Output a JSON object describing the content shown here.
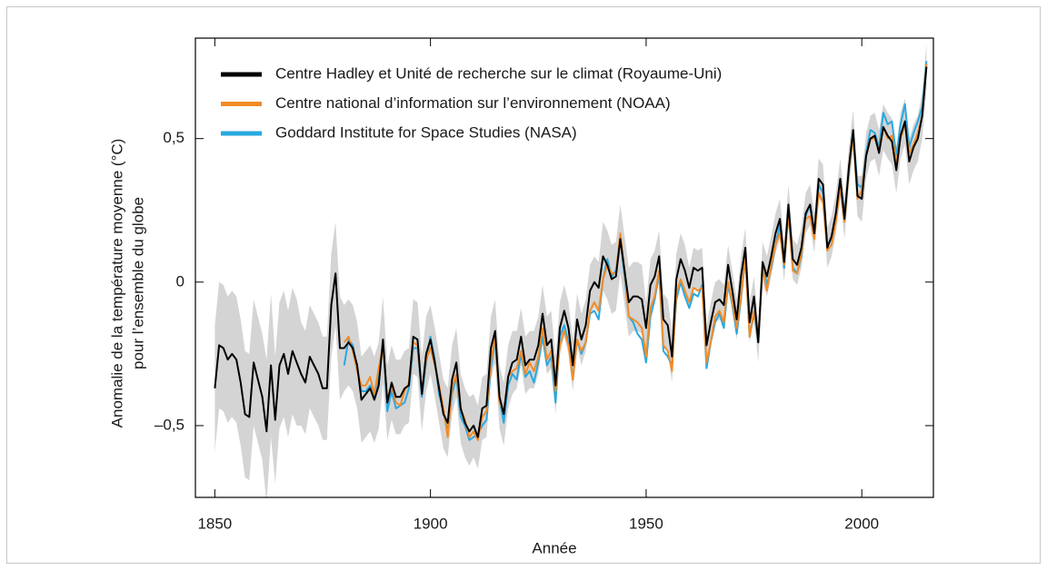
{
  "chart_data": {
    "type": "line",
    "xlabel": "Année",
    "ylabel": [
      "Anomalie de la température moyenne (°C)",
      "pour l’ensemble du globe"
    ],
    "xlim": [
      1845.5,
      2016.6
    ],
    "ylim": [
      -0.75,
      0.85
    ],
    "xticks": [
      1850,
      1900,
      1950,
      2000
    ],
    "yticks": [
      {
        "value": -0.5,
        "label": "–0,5"
      },
      0,
      {
        "value": 0.5,
        "label": "0,5"
      }
    ],
    "legend": "upper left",
    "band_color": "#d4d4d4",
    "x": [
      1850,
      1851,
      1852,
      1853,
      1854,
      1855,
      1856,
      1857,
      1858,
      1859,
      1860,
      1861,
      1862,
      1863,
      1864,
      1865,
      1866,
      1867,
      1868,
      1869,
      1870,
      1871,
      1872,
      1873,
      1874,
      1875,
      1876,
      1877,
      1878,
      1879,
      1880,
      1881,
      1882,
      1883,
      1884,
      1885,
      1886,
      1887,
      1888,
      1889,
      1890,
      1891,
      1892,
      1893,
      1894,
      1895,
      1896,
      1897,
      1898,
      1899,
      1900,
      1901,
      1902,
      1903,
      1904,
      1905,
      1906,
      1907,
      1908,
      1909,
      1910,
      1911,
      1912,
      1913,
      1914,
      1915,
      1916,
      1917,
      1918,
      1919,
      1920,
      1921,
      1922,
      1923,
      1924,
      1925,
      1926,
      1927,
      1928,
      1929,
      1930,
      1931,
      1932,
      1933,
      1934,
      1935,
      1936,
      1937,
      1938,
      1939,
      1940,
      1941,
      1942,
      1943,
      1944,
      1945,
      1946,
      1947,
      1948,
      1949,
      1950,
      1951,
      1952,
      1953,
      1954,
      1955,
      1956,
      1957,
      1958,
      1959,
      1960,
      1961,
      1962,
      1963,
      1964,
      1965,
      1966,
      1967,
      1968,
      1969,
      1970,
      1971,
      1972,
      1973,
      1974,
      1975,
      1976,
      1977,
      1978,
      1979,
      1980,
      1981,
      1982,
      1983,
      1984,
      1985,
      1986,
      1987,
      1988,
      1989,
      1990,
      1991,
      1992,
      1993,
      1994,
      1995,
      1996,
      1997,
      1998,
      1999,
      2000,
      2001,
      2002,
      2003,
      2004,
      2005,
      2006,
      2007,
      2008,
      2009,
      2010,
      2011,
      2012,
      2013,
      2014,
      2015
    ],
    "series": [
      {
        "name": "Centre Hadley et Unité de recherche sur le climat (Royaume-Uni)",
        "color": "#000000",
        "values": [
          -0.37,
          -0.22,
          -0.23,
          -0.27,
          -0.25,
          -0.27,
          -0.35,
          -0.46,
          -0.47,
          -0.28,
          -0.34,
          -0.4,
          -0.52,
          -0.29,
          -0.48,
          -0.29,
          -0.25,
          -0.32,
          -0.24,
          -0.28,
          -0.32,
          -0.35,
          -0.26,
          -0.29,
          -0.32,
          -0.37,
          -0.37,
          -0.08,
          0.03,
          -0.23,
          -0.23,
          -0.21,
          -0.23,
          -0.29,
          -0.41,
          -0.39,
          -0.37,
          -0.41,
          -0.36,
          -0.2,
          -0.42,
          -0.35,
          -0.4,
          -0.4,
          -0.37,
          -0.36,
          -0.19,
          -0.2,
          -0.39,
          -0.25,
          -0.2,
          -0.28,
          -0.37,
          -0.46,
          -0.49,
          -0.34,
          -0.28,
          -0.44,
          -0.49,
          -0.52,
          -0.5,
          -0.54,
          -0.44,
          -0.43,
          -0.23,
          -0.17,
          -0.4,
          -0.46,
          -0.33,
          -0.28,
          -0.27,
          -0.19,
          -0.29,
          -0.27,
          -0.27,
          -0.22,
          -0.11,
          -0.22,
          -0.2,
          -0.36,
          -0.16,
          -0.1,
          -0.16,
          -0.29,
          -0.13,
          -0.2,
          -0.15,
          -0.03,
          0.0,
          -0.02,
          0.09,
          0.06,
          0.01,
          0.02,
          0.15,
          0.04,
          -0.07,
          -0.05,
          -0.05,
          -0.06,
          -0.16,
          -0.01,
          0.02,
          0.09,
          -0.13,
          -0.15,
          -0.26,
          0.01,
          0.08,
          0.04,
          -0.02,
          0.05,
          0.04,
          0.05,
          -0.22,
          -0.14,
          -0.07,
          -0.06,
          -0.08,
          0.06,
          -0.03,
          -0.13,
          0.02,
          0.12,
          -0.14,
          -0.05,
          -0.21,
          0.07,
          0.02,
          0.09,
          0.17,
          0.22,
          0.07,
          0.27,
          0.08,
          0.06,
          0.12,
          0.24,
          0.27,
          0.17,
          0.36,
          0.34,
          0.12,
          0.16,
          0.24,
          0.36,
          0.22,
          0.4,
          0.53,
          0.3,
          0.29,
          0.44,
          0.5,
          0.51,
          0.45,
          0.54,
          0.51,
          0.49,
          0.39,
          0.51,
          0.56,
          0.42,
          0.47,
          0.5,
          0.58,
          0.75
        ],
        "errors": [
          0.22,
          0.22,
          0.22,
          0.22,
          0.22,
          0.22,
          0.22,
          0.22,
          0.22,
          0.22,
          0.22,
          0.22,
          0.25,
          0.25,
          0.22,
          0.22,
          0.22,
          0.22,
          0.22,
          0.22,
          0.18,
          0.18,
          0.18,
          0.18,
          0.18,
          0.18,
          0.18,
          0.18,
          0.18,
          0.18,
          0.15,
          0.15,
          0.15,
          0.15,
          0.15,
          0.15,
          0.15,
          0.15,
          0.15,
          0.15,
          0.13,
          0.13,
          0.13,
          0.13,
          0.13,
          0.13,
          0.13,
          0.13,
          0.13,
          0.13,
          0.12,
          0.12,
          0.12,
          0.12,
          0.12,
          0.12,
          0.12,
          0.12,
          0.12,
          0.12,
          0.11,
          0.11,
          0.11,
          0.11,
          0.11,
          0.11,
          0.11,
          0.11,
          0.11,
          0.11,
          0.1,
          0.1,
          0.1,
          0.1,
          0.1,
          0.1,
          0.1,
          0.1,
          0.1,
          0.1,
          0.09,
          0.09,
          0.09,
          0.09,
          0.09,
          0.09,
          0.09,
          0.09,
          0.09,
          0.09,
          0.12,
          0.12,
          0.12,
          0.12,
          0.12,
          0.12,
          0.12,
          0.12,
          0.12,
          0.12,
          0.09,
          0.09,
          0.09,
          0.09,
          0.09,
          0.09,
          0.09,
          0.09,
          0.09,
          0.09,
          0.07,
          0.07,
          0.07,
          0.07,
          0.07,
          0.07,
          0.07,
          0.07,
          0.07,
          0.07,
          0.07,
          0.07,
          0.07,
          0.07,
          0.07,
          0.07,
          0.07,
          0.07,
          0.07,
          0.07,
          0.07,
          0.07,
          0.07,
          0.07,
          0.07,
          0.07,
          0.07,
          0.07,
          0.07,
          0.07,
          0.07,
          0.07,
          0.07,
          0.07,
          0.07,
          0.07,
          0.07,
          0.07,
          0.07,
          0.07,
          0.08,
          0.08,
          0.08,
          0.08,
          0.08,
          0.08,
          0.08,
          0.08,
          0.08,
          0.08,
          0.08,
          0.08,
          0.08,
          0.08,
          0.08,
          0.08
        ]
      },
      {
        "name": "Centre national d’information sur l’environnement (NOAA)",
        "color": "#f28c28",
        "values": [
          null,
          null,
          null,
          null,
          null,
          null,
          null,
          null,
          null,
          null,
          null,
          null,
          null,
          null,
          null,
          null,
          null,
          null,
          null,
          null,
          null,
          null,
          null,
          null,
          null,
          null,
          null,
          null,
          null,
          null,
          -0.21,
          -0.19,
          -0.24,
          -0.31,
          -0.36,
          -0.36,
          -0.33,
          -0.39,
          -0.3,
          -0.22,
          -0.41,
          -0.36,
          -0.42,
          -0.43,
          -0.38,
          -0.35,
          -0.21,
          -0.22,
          -0.38,
          -0.27,
          -0.23,
          -0.29,
          -0.36,
          -0.44,
          -0.54,
          -0.37,
          -0.32,
          -0.44,
          -0.48,
          -0.54,
          -0.52,
          -0.55,
          -0.47,
          -0.45,
          -0.28,
          -0.19,
          -0.42,
          -0.45,
          -0.33,
          -0.31,
          -0.3,
          -0.24,
          -0.32,
          -0.28,
          -0.31,
          -0.26,
          -0.16,
          -0.27,
          -0.24,
          -0.38,
          -0.22,
          -0.17,
          -0.22,
          -0.34,
          -0.2,
          -0.24,
          -0.21,
          -0.1,
          -0.07,
          -0.1,
          0.01,
          0.06,
          0.03,
          0.03,
          0.17,
          0.04,
          -0.12,
          -0.13,
          -0.14,
          -0.16,
          -0.26,
          -0.09,
          -0.05,
          0.04,
          -0.22,
          -0.24,
          -0.31,
          -0.04,
          0.01,
          -0.03,
          -0.07,
          -0.02,
          -0.03,
          -0.02,
          -0.28,
          -0.21,
          -0.12,
          -0.1,
          -0.14,
          0.0,
          -0.07,
          -0.16,
          -0.05,
          0.08,
          -0.19,
          -0.1,
          -0.2,
          0.05,
          -0.03,
          0.06,
          0.13,
          0.17,
          0.06,
          0.24,
          0.04,
          0.03,
          0.1,
          0.22,
          0.23,
          0.15,
          0.31,
          0.28,
          0.11,
          0.13,
          0.21,
          0.33,
          0.21,
          0.39,
          0.51,
          0.29,
          0.32,
          0.44,
          0.5,
          0.5,
          0.46,
          0.54,
          0.5,
          0.51,
          0.42,
          0.5,
          0.55,
          0.45,
          0.48,
          0.52,
          0.58,
          0.76
        ]
      },
      {
        "name": "Goddard Institute for Space Studies (NASA)",
        "color": "#29a8e0",
        "values": [
          null,
          null,
          null,
          null,
          null,
          null,
          null,
          null,
          null,
          null,
          null,
          null,
          null,
          null,
          null,
          null,
          null,
          null,
          null,
          null,
          null,
          null,
          null,
          null,
          null,
          null,
          null,
          null,
          null,
          null,
          -0.29,
          -0.2,
          -0.22,
          -0.3,
          -0.38,
          -0.38,
          -0.36,
          -0.4,
          -0.33,
          -0.21,
          -0.45,
          -0.38,
          -0.44,
          -0.43,
          -0.42,
          -0.37,
          -0.23,
          -0.23,
          -0.4,
          -0.28,
          -0.19,
          -0.27,
          -0.39,
          -0.45,
          -0.52,
          -0.39,
          -0.33,
          -0.47,
          -0.5,
          -0.55,
          -0.54,
          -0.53,
          -0.5,
          -0.48,
          -0.3,
          -0.2,
          -0.41,
          -0.49,
          -0.36,
          -0.32,
          -0.34,
          -0.25,
          -0.33,
          -0.31,
          -0.35,
          -0.28,
          -0.19,
          -0.29,
          -0.26,
          -0.42,
          -0.19,
          -0.15,
          -0.21,
          -0.34,
          -0.2,
          -0.25,
          -0.21,
          -0.11,
          -0.1,
          -0.13,
          0.01,
          0.08,
          0.02,
          0.04,
          0.15,
          0.02,
          -0.12,
          -0.14,
          -0.18,
          -0.2,
          -0.28,
          -0.12,
          -0.06,
          0.03,
          -0.24,
          -0.26,
          -0.29,
          -0.06,
          0.0,
          -0.05,
          -0.09,
          -0.04,
          -0.05,
          -0.01,
          -0.3,
          -0.21,
          -0.14,
          -0.11,
          -0.16,
          -0.01,
          -0.08,
          -0.18,
          -0.06,
          0.09,
          -0.19,
          -0.11,
          -0.21,
          0.07,
          -0.01,
          0.05,
          0.13,
          0.2,
          0.05,
          0.25,
          0.05,
          0.03,
          0.09,
          0.23,
          0.27,
          0.17,
          0.34,
          0.31,
          0.13,
          0.15,
          0.22,
          0.35,
          0.24,
          0.38,
          0.52,
          0.34,
          0.33,
          0.45,
          0.53,
          0.52,
          0.47,
          0.59,
          0.55,
          0.56,
          0.44,
          0.55,
          0.62,
          0.47,
          0.52,
          0.56,
          0.61,
          0.77
        ]
      }
    ]
  }
}
